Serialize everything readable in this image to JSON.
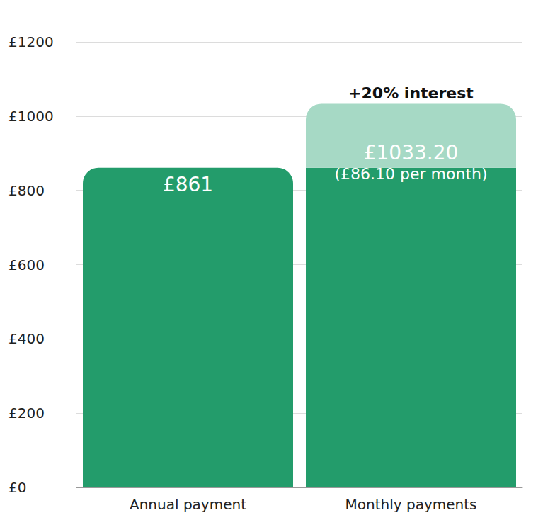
{
  "chart_data": {
    "type": "bar",
    "stacked": true,
    "grid": true,
    "categories": [
      "Annual payment",
      "Monthly payments"
    ],
    "series": [
      {
        "color": "#239c6b",
        "values": [
          861,
          861
        ]
      },
      {
        "color": "#a6d9c5",
        "values": [
          null,
          172.2
        ]
      }
    ],
    "annotations": [
      {
        "category": "Annual payment",
        "text": "£861"
      },
      {
        "category": "Monthly payments",
        "text": "+20% interest"
      },
      {
        "category": "Monthly payments",
        "text": "£1033.20"
      },
      {
        "category": "Monthly payments",
        "text": "(£86.10 per month)"
      }
    ],
    "ylim": [
      0,
      1200
    ],
    "yticks": [
      {
        "value": 0,
        "label": "£0"
      },
      {
        "value": 200,
        "label": "£200"
      },
      {
        "value": 400,
        "label": "£400"
      },
      {
        "value": 600,
        "label": "£600"
      },
      {
        "value": 800,
        "label": "£800"
      },
      {
        "value": 1000,
        "label": "£1000"
      },
      {
        "value": 1200,
        "label": "£1200"
      }
    ]
  }
}
